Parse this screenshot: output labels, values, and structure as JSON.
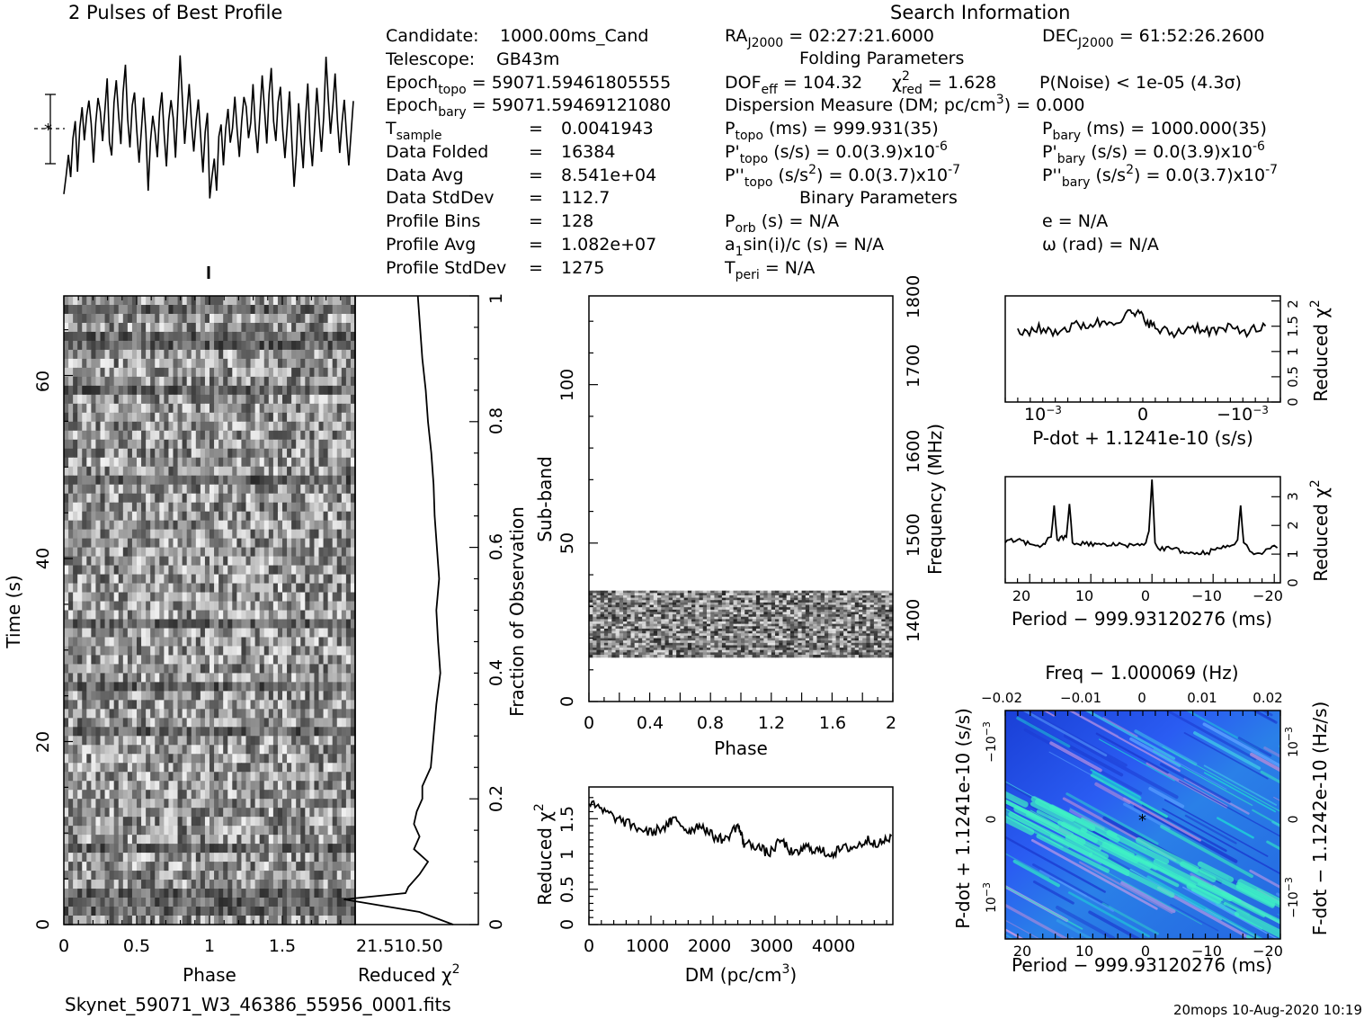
{
  "title_left": "2 Pulses of Best Profile",
  "title_search": "Search Information",
  "filename": "Skynet_59071_W3_46386_55956_0001.fits",
  "footer_right": "20mops 10-Aug-2020 10:19",
  "info_col1": [
    {
      "label": "Candidate:",
      "value": "1000.00ms_Cand"
    },
    {
      "label": "Telescope:",
      "value": "GB43m"
    },
    {
      "label": "Epoch",
      "sub": "topo",
      "eq": "=",
      "value": "59071.59461805555"
    },
    {
      "label": "Epoch",
      "sub": "bary",
      "eq": "=",
      "value": "59071.59469121080"
    },
    {
      "label": "T",
      "sub": "sample",
      "eq": "=",
      "value": "0.0041943"
    },
    {
      "label": "Data Folded",
      "eq": "=",
      "value": "16384"
    },
    {
      "label": "Data Avg",
      "eq": "=",
      "value": "8.541e+04"
    },
    {
      "label": "Data StdDev",
      "eq": "=",
      "value": "112.7"
    },
    {
      "label": "Profile Bins",
      "eq": "=",
      "value": "128"
    },
    {
      "label": "Profile Avg",
      "eq": "=",
      "value": "1.082e+07"
    },
    {
      "label": "Profile StdDev",
      "eq": "=",
      "value": "1275"
    }
  ],
  "search_info": {
    "ra": "RA",
    "ra_sub": "J2000",
    "ra_value": "= 02:27:21.6000",
    "dec": "DEC",
    "dec_sub": "J2000",
    "dec_value": "= 61:52:26.2600",
    "folding_header": "Folding Parameters",
    "dof": "DOF",
    "dof_sub": "eff",
    "dof_value": "= 104.32",
    "chi": "χ",
    "chi_sup": "2",
    "chi_sub": "red",
    "chi_value": "= 1.628",
    "pnoise": "P(Noise) < 1e-05   (4.3σ)",
    "dm": "Dispersion Measure (DM; pc/cm",
    "dm_sup": "3",
    "dm_value": ") = 0.000",
    "ptopo": "P",
    "ptopo_sub": "topo",
    "ptopo_value": "(ms) =  999.931(35)",
    "pbary": "P",
    "pbary_sub": "bary",
    "pbary_value": "(ms) =  1000.000(35)",
    "pdtopo": "P'",
    "pdtopo_sub": "topo",
    "pdtopo_value": "(s/s) = 0.0(3.9)x10",
    "pdtopo_exp": "-6",
    "pdbary": "P'",
    "pdbary_sub": "bary",
    "pdbary_value": "(s/s) = 0.0(3.9)x10",
    "pdbary_exp": "-6",
    "pddtopo": "P''",
    "pddtopo_sub": "topo",
    "pddtopo_value": "(s/s",
    "pddtopo_sup": "2",
    "pddtopo_value2": ") = 0.0(3.7)x10",
    "pddtopo_exp": "-7",
    "pddbary": "P''",
    "pddbary_sub": "bary",
    "pddbary_value": "(s/s",
    "pddbary_sup": "2",
    "pddbary_value2": ") = 0.0(3.7)x10",
    "pddbary_exp": "-7",
    "binary_header": "Binary Parameters",
    "porb": "P",
    "porb_sub": "orb",
    "porb_value": "(s) = N/A",
    "ecc": "e = N/A",
    "a1": "a",
    "a1_sub": "1",
    "a1_value": "sin(i)/c (s) = N/A",
    "omega": "ω (rad) = N/A",
    "tperi": "T",
    "tperi_sub": "peri",
    "tperi_value": "= N/A"
  },
  "colors": {
    "ink": "#000000",
    "paper": "#ffffff"
  },
  "chart_data": [
    {
      "type": "line",
      "name": "profile",
      "x_range": [
        0,
        2
      ],
      "y": [
        0.27,
        0.38,
        0.45,
        0.32,
        0.52,
        0.6,
        0.41,
        0.55,
        0.66,
        0.5,
        0.62,
        0.72,
        0.58,
        0.45,
        0.6,
        0.74,
        0.68,
        0.5,
        0.63,
        0.78,
        0.55,
        0.46,
        0.68,
        0.81,
        0.66,
        0.52,
        0.71,
        0.84,
        0.63,
        0.5,
        0.66,
        0.77,
        0.6,
        0.44,
        0.58,
        0.72,
        0.52,
        0.3,
        0.5,
        0.66,
        0.57,
        0.42,
        0.63,
        0.76,
        0.55,
        0.38,
        0.6,
        0.74,
        0.62,
        0.48,
        0.67,
        0.92,
        0.7,
        0.53,
        0.66,
        0.79,
        0.61,
        0.44,
        0.62,
        0.75,
        0.57,
        0.41,
        0.55,
        0.69,
        0.28,
        0.38,
        0.45,
        0.32,
        0.52,
        0.6,
        0.41,
        0.55,
        0.66,
        0.5,
        0.62,
        0.72,
        0.58,
        0.45,
        0.6,
        0.74,
        0.68,
        0.5,
        0.63,
        0.78,
        0.55,
        0.46,
        0.68,
        0.81,
        0.66,
        0.52,
        0.71,
        0.84,
        0.63,
        0.5,
        0.66,
        0.77,
        0.6,
        0.44,
        0.58,
        0.72,
        0.52,
        0.3,
        0.5,
        0.66,
        0.57,
        0.42,
        0.63,
        0.76,
        0.55,
        0.38,
        0.6,
        0.74,
        0.62,
        0.48,
        0.67,
        0.92,
        0.7,
        0.53,
        0.66,
        0.79,
        0.61,
        0.44,
        0.62,
        0.75,
        0.57,
        0.41,
        0.55,
        0.69
      ]
    },
    {
      "type": "heatmap",
      "name": "time-phase",
      "xlabel": "Phase",
      "ylabel": "Time (s)",
      "xlim": [
        0,
        2
      ],
      "ylim": [
        0,
        68.7
      ],
      "xticks": [
        "0",
        "0.5",
        "1",
        "1.5"
      ],
      "yticks": [
        "0",
        "20",
        "40",
        "60"
      ],
      "right_axis_label": "Fraction of Observation",
      "right_ticks": [
        "0",
        "0.2",
        "0.4",
        "0.6",
        "0.8",
        "1"
      ]
    },
    {
      "type": "line",
      "name": "time-reduced-chi2",
      "xlabel": "Reduced χ",
      "xlabel_sup": "2",
      "xticks_text": "21.510.50",
      "fraction": [
        0.0,
        0.02,
        0.04,
        0.05,
        0.06,
        0.08,
        0.1,
        0.12,
        0.14,
        0.16,
        0.18,
        0.2,
        0.22,
        0.25,
        0.3,
        0.35,
        0.4,
        0.45,
        0.5,
        0.55,
        0.6,
        0.65,
        0.7,
        0.75,
        0.8,
        0.85,
        0.9,
        0.95,
        1.0
      ],
      "redchi": [
        0.45,
        1.05,
        2.4,
        1.3,
        1.25,
        1.05,
        0.9,
        1.15,
        1.05,
        1.15,
        1.1,
        1.0,
        1.0,
        0.85,
        0.8,
        0.75,
        0.68,
        0.72,
        0.75,
        0.7,
        0.74,
        0.78,
        0.8,
        0.84,
        0.9,
        0.94,
        1.0,
        1.04,
        1.08
      ]
    },
    {
      "type": "heatmap",
      "name": "subband-phase",
      "xlabel": "Phase",
      "ylabel": "Sub-band",
      "xticks": [
        "0",
        "0.4",
        "0.8",
        "1.2",
        "1.6",
        "2"
      ],
      "yticks": [
        "0",
        "50",
        "100"
      ],
      "ylim": [
        0,
        128
      ],
      "filled_subbands": [
        14,
        35
      ],
      "right_axis_label": "Frequency (MHz)",
      "right_ticks": [
        "1400",
        "1500",
        "1600",
        "1700",
        "1800"
      ]
    },
    {
      "type": "line",
      "name": "dm-chi2",
      "xlabel": "DM (pc/cm",
      "xlabel_sup": "3",
      "xlabel_end": ")",
      "ylabel": "Reduced χ",
      "ylabel_sup": "2",
      "xlim": [
        0,
        4900
      ],
      "ylim": [
        0,
        1.95
      ],
      "xticks": [
        "0",
        "1000",
        "2000",
        "3000",
        "4000"
      ],
      "yticks": [
        "0",
        "0.5",
        "1",
        "1.5"
      ],
      "x": [
        0,
        250,
        500,
        750,
        1000,
        1250,
        1400,
        1600,
        1800,
        2000,
        2200,
        2400,
        2500,
        2700,
        2900,
        3100,
        3300,
        3500,
        3700,
        3900,
        4100,
        4300,
        4500,
        4700,
        4900
      ],
      "y": [
        1.72,
        1.6,
        1.48,
        1.38,
        1.3,
        1.4,
        1.5,
        1.32,
        1.42,
        1.25,
        1.2,
        1.42,
        1.15,
        1.12,
        1.0,
        1.2,
        0.98,
        1.1,
        1.05,
        1.0,
        1.08,
        1.1,
        1.2,
        1.15,
        1.25
      ]
    },
    {
      "type": "line",
      "name": "pdot-chi2",
      "xlabel": "P-dot + 1.1241e-10 (s/s)",
      "ylabel": "Reduced χ",
      "ylabel_sup": "2",
      "xticks": [
        "10",
        "0",
        "−10"
      ],
      "xticks_exp": [
        "−3",
        "",
        "−3"
      ],
      "yticks": [
        "0",
        "0.5",
        "1",
        "1.5",
        "2"
      ],
      "ylim": [
        0,
        2.1
      ],
      "x": [
        -1.0,
        -0.85,
        -0.7,
        -0.55,
        -0.4,
        -0.25,
        -0.1,
        0.0,
        0.1,
        0.25,
        0.4,
        0.55,
        0.7,
        0.85,
        1.0
      ],
      "y": [
        1.35,
        1.45,
        1.4,
        1.5,
        1.55,
        1.6,
        1.75,
        1.7,
        1.45,
        1.35,
        1.5,
        1.4,
        1.45,
        1.4,
        1.5
      ]
    },
    {
      "type": "line",
      "name": "period-chi2",
      "xlabel": "Period − 999.93120276 (ms)",
      "ylabel": "Reduced χ",
      "ylabel_sup": "2",
      "xlim": [
        24,
        -21
      ],
      "ylim": [
        0,
        3.7
      ],
      "xticks": [
        "20",
        "10",
        "0",
        "−10",
        "−20"
      ],
      "yticks": [
        "0",
        "1",
        "2",
        "3"
      ],
      "x": [
        24,
        22,
        20,
        18,
        16.5,
        16,
        15.5,
        14,
        13.5,
        13,
        11,
        9,
        7,
        5,
        3,
        1,
        0.5,
        0,
        -0.5,
        -1,
        -3,
        -5,
        -7,
        -9,
        -11,
        -13,
        -14,
        -14.5,
        -15,
        -16,
        -18,
        -20,
        -21
      ],
      "y": [
        1.4,
        1.5,
        1.35,
        1.3,
        1.6,
        2.7,
        1.5,
        1.6,
        2.75,
        1.4,
        1.35,
        1.35,
        1.3,
        1.35,
        1.3,
        1.4,
        1.8,
        3.6,
        1.4,
        1.2,
        1.2,
        1.1,
        1.0,
        1.05,
        1.2,
        1.3,
        1.5,
        2.7,
        1.4,
        1.1,
        1.0,
        1.3,
        1.15
      ]
    },
    {
      "type": "heatmap",
      "name": "period-pdot",
      "title": "Freq − 1.000069 (Hz)",
      "xlabel": "Period − 999.93120276 (ms)",
      "ylabel": "P-dot + 1.1241e-10 (s/s)",
      "right_label": "F-dot − 1.1242e-10 (Hz/s)",
      "xticks": [
        "20",
        "10",
        "0",
        "−10",
        "−20"
      ],
      "top_ticks": [
        "−0.02",
        "−0.01",
        "0",
        "0.01",
        "0.02"
      ],
      "yticks_left": [
        "10",
        "0",
        "−10"
      ],
      "yticks_left_exp": [
        "−3",
        "",
        "−3"
      ],
      "yticks_right": [
        "−10",
        "0",
        "10"
      ],
      "yticks_right_exp": [
        "−3",
        "",
        "−3"
      ]
    }
  ]
}
